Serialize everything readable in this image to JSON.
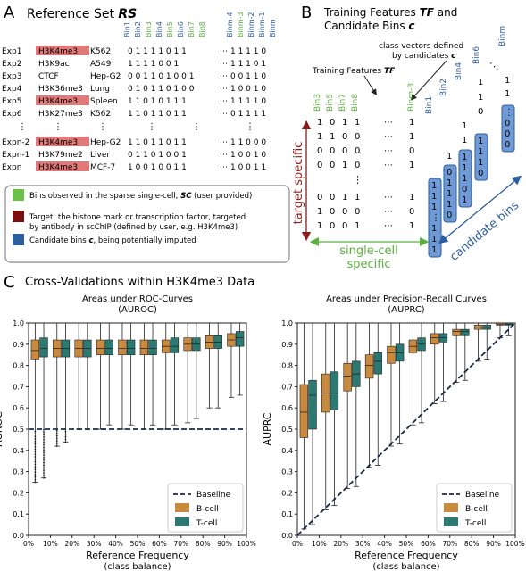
{
  "panelA": {
    "letter": "A",
    "title": "Reference Set ",
    "title_em": "RS",
    "bin_headers": [
      "Bin1",
      "Bin2",
      "Bin3",
      "Bin4",
      "Bin5",
      "Bin6",
      "Bin7",
      "Bin8",
      "Binm-4",
      "Binm-3",
      "Binm-2",
      "Binm-1",
      "Binm"
    ],
    "bin_header_colors": [
      "blue",
      "blue",
      "green",
      "blue",
      "green",
      "blue",
      "green",
      "green",
      "blue",
      "green",
      "blue",
      "blue",
      "blue"
    ],
    "rows": [
      {
        "exp": "Exp1",
        "mark": "H3K4me3",
        "cell": "K562",
        "bits": "0 1 1 1 1 0 1 1",
        "tail": "1 1 1 1 0",
        "hl": true
      },
      {
        "exp": "Exp2",
        "mark": "H3K9ac",
        "cell": "A549",
        "bits": "1 1 1 1 0 0 1",
        "tail": "1 1 1 0 1",
        "hl": false
      },
      {
        "exp": "Exp3",
        "mark": "CTCF",
        "cell": "Hep-G2",
        "bits": "0 0 1 1 0 1 0 0 1",
        "tail": "0 0 1 1 0",
        "hl": false
      },
      {
        "exp": "Exp4",
        "mark": "H3K36me3",
        "cell": "Lung",
        "bits": "0 1 0 1 1 0 1 0 0",
        "tail": "1 0 0 1 0",
        "hl": false
      },
      {
        "exp": "Exp5",
        "mark": "H3K4me3",
        "cell": "Spleen",
        "bits": "1 1 0 1 0 1 1 1",
        "tail": "1 1 1 1 0",
        "hl": true
      },
      {
        "exp": "Exp6",
        "mark": "H3K27me3",
        "cell": "K562",
        "bits": "1 1 0 1 1 0 1 1",
        "tail": "0 1 1 1 1",
        "hl": false
      },
      {
        "exp": "Expn-2",
        "mark": "H3K4me3",
        "cell": "Hep-G2",
        "bits": "1 1 0 1 1 0 1 1",
        "tail": "1 1 0 0 0",
        "hl": true
      },
      {
        "exp": "Expn-1",
        "mark": "H3K79me2",
        "cell": "Liver",
        "bits": "0 1 1 0 1 0 0 1",
        "tail": "1 0 0 1 0",
        "hl": false
      },
      {
        "exp": "Expn",
        "mark": "H3K4me3",
        "cell": "MCF-7",
        "bits": "1 0 0 1 0 0 1 1",
        "tail": "1 0 0 1 1",
        "hl": true
      }
    ],
    "legend": [
      {
        "color": "#6cc14a",
        "text1": "Bins observed in the sparse single-cell, ",
        "em": "SC",
        "text2": " (user provided)"
      },
      {
        "color": "#7a1010",
        "text1": "Target: the histone mark or transcription factor, targeted",
        "em": "",
        "text2": "by antibody in scChIP (defined by user, e.g. H3K4me3)"
      },
      {
        "color": "#2d5e9e",
        "text1": "Candidate bins ",
        "em": "c",
        "text2": ", being potentially imputed"
      }
    ]
  },
  "panelB": {
    "letter": "B",
    "title1": "Training Features ",
    "title1_em": "TF",
    "title1_end": " and",
    "title2": "Candidate Bins ",
    "title2_em": "c",
    "annot1": "class vectors defined",
    "annot2": "by candidates ",
    "annot2_em": "c",
    "tf_label": "Training Features ",
    "tf_label_em": "TF",
    "target_specific": "target specific",
    "single_cell_1": "single-cell",
    "single_cell_2": "specific",
    "candidate_bins": "candidate bins",
    "green_headers": [
      "Bin3",
      "Bin5",
      "Bin7",
      "Bin8",
      "Binm-3"
    ],
    "blue_headers": [
      "Bin1",
      "Bin2",
      "Bin4",
      "Bin6",
      "Binm"
    ]
  },
  "panelC": {
    "letter": "C",
    "title": "Cross-Validations within H3K4me3 Data",
    "colors": {
      "bcell": "#c98a3e",
      "tcell": "#2a7a72"
    },
    "legend": [
      "Baseline",
      "B-cell",
      "T-cell"
    ]
  },
  "chart_data": [
    {
      "type": "box",
      "title": "Areas under ROC-Curves",
      "subtitle": "(AUROC)",
      "xlabel": "Reference Frequency",
      "xlabel2": "(class balance)",
      "ylabel": "AUROC",
      "ylim": [
        0.0,
        1.0
      ],
      "yticks": [
        "0.0",
        "0.1",
        "0.2",
        "0.3",
        "0.4",
        "0.5",
        "0.6",
        "0.7",
        "0.8",
        "0.9",
        "1.0"
      ],
      "categories": [
        "0%",
        "10%",
        "20%",
        "30%",
        "40%",
        "50%",
        "60%",
        "70%",
        "80%",
        "90%",
        "100%"
      ],
      "baseline": 0.5,
      "series": [
        {
          "name": "B-cell",
          "boxes": [
            {
              "x": 0.05,
              "wlo": 0.25,
              "q1": 0.83,
              "med": 0.87,
              "q3": 0.92,
              "whi": 1.0
            },
            {
              "x": 0.15,
              "wlo": 0.42,
              "q1": 0.84,
              "med": 0.88,
              "q3": 0.92,
              "whi": 1.0
            },
            {
              "x": 0.25,
              "wlo": 0.5,
              "q1": 0.84,
              "med": 0.88,
              "q3": 0.92,
              "whi": 1.0
            },
            {
              "x": 0.35,
              "wlo": 0.5,
              "q1": 0.85,
              "med": 0.88,
              "q3": 0.92,
              "whi": 1.0
            },
            {
              "x": 0.45,
              "wlo": 0.5,
              "q1": 0.85,
              "med": 0.88,
              "q3": 0.92,
              "whi": 1.0
            },
            {
              "x": 0.55,
              "wlo": 0.5,
              "q1": 0.85,
              "med": 0.88,
              "q3": 0.92,
              "whi": 1.0
            },
            {
              "x": 0.65,
              "wlo": 0.5,
              "q1": 0.86,
              "med": 0.89,
              "q3": 0.92,
              "whi": 1.0
            },
            {
              "x": 0.75,
              "wlo": 0.53,
              "q1": 0.87,
              "med": 0.9,
              "q3": 0.93,
              "whi": 1.0
            },
            {
              "x": 0.85,
              "wlo": 0.6,
              "q1": 0.88,
              "med": 0.91,
              "q3": 0.94,
              "whi": 1.0
            },
            {
              "x": 0.95,
              "wlo": 0.65,
              "q1": 0.89,
              "med": 0.92,
              "q3": 0.95,
              "whi": 1.0
            }
          ]
        },
        {
          "name": "T-cell",
          "boxes": [
            {
              "x": 0.05,
              "wlo": 0.27,
              "q1": 0.84,
              "med": 0.88,
              "q3": 0.93,
              "whi": 1.0
            },
            {
              "x": 0.15,
              "wlo": 0.44,
              "q1": 0.84,
              "med": 0.88,
              "q3": 0.92,
              "whi": 1.0
            },
            {
              "x": 0.25,
              "wlo": 0.5,
              "q1": 0.84,
              "med": 0.88,
              "q3": 0.92,
              "whi": 1.0
            },
            {
              "x": 0.35,
              "wlo": 0.52,
              "q1": 0.85,
              "med": 0.88,
              "q3": 0.92,
              "whi": 1.0
            },
            {
              "x": 0.45,
              "wlo": 0.52,
              "q1": 0.85,
              "med": 0.88,
              "q3": 0.92,
              "whi": 1.0
            },
            {
              "x": 0.55,
              "wlo": 0.52,
              "q1": 0.85,
              "med": 0.88,
              "q3": 0.92,
              "whi": 1.0
            },
            {
              "x": 0.65,
              "wlo": 0.52,
              "q1": 0.86,
              "med": 0.89,
              "q3": 0.93,
              "whi": 1.0
            },
            {
              "x": 0.75,
              "wlo": 0.55,
              "q1": 0.87,
              "med": 0.9,
              "q3": 0.93,
              "whi": 1.0
            },
            {
              "x": 0.85,
              "wlo": 0.6,
              "q1": 0.88,
              "med": 0.91,
              "q3": 0.94,
              "whi": 1.0
            },
            {
              "x": 0.95,
              "wlo": 0.66,
              "q1": 0.89,
              "med": 0.93,
              "q3": 0.96,
              "whi": 1.0
            }
          ]
        }
      ]
    },
    {
      "type": "box",
      "title": "Areas under Precision-Recall Curves",
      "subtitle": "(AUPRC)",
      "xlabel": "Reference Frequency",
      "xlabel2": "(class balance)",
      "ylabel": "AUPRC",
      "ylim": [
        0.0,
        1.0
      ],
      "yticks": [
        "0.0",
        "0.1",
        "0.2",
        "0.3",
        "0.4",
        "0.5",
        "0.6",
        "0.7",
        "0.8",
        "0.9",
        "1.0"
      ],
      "categories": [
        "0%",
        "10%",
        "20%",
        "30%",
        "40%",
        "50%",
        "60%",
        "70%",
        "80%",
        "90%",
        "100%"
      ],
      "baseline": "diagonal",
      "series": [
        {
          "name": "B-cell",
          "boxes": [
            {
              "x": 0.05,
              "wlo": 0.03,
              "q1": 0.46,
              "med": 0.58,
              "q3": 0.71,
              "whi": 1.0
            },
            {
              "x": 0.15,
              "wlo": 0.12,
              "q1": 0.58,
              "med": 0.67,
              "q3": 0.76,
              "whi": 1.0
            },
            {
              "x": 0.25,
              "wlo": 0.22,
              "q1": 0.68,
              "med": 0.75,
              "q3": 0.81,
              "whi": 1.0
            },
            {
              "x": 0.35,
              "wlo": 0.32,
              "q1": 0.74,
              "med": 0.8,
              "q3": 0.85,
              "whi": 1.0
            },
            {
              "x": 0.45,
              "wlo": 0.42,
              "q1": 0.81,
              "med": 0.86,
              "q3": 0.89,
              "whi": 1.0
            },
            {
              "x": 0.55,
              "wlo": 0.52,
              "q1": 0.86,
              "med": 0.89,
              "q3": 0.92,
              "whi": 1.0
            },
            {
              "x": 0.65,
              "wlo": 0.62,
              "q1": 0.9,
              "med": 0.93,
              "q3": 0.95,
              "whi": 1.0
            },
            {
              "x": 0.75,
              "wlo": 0.72,
              "q1": 0.94,
              "med": 0.96,
              "q3": 0.97,
              "whi": 1.0
            },
            {
              "x": 0.85,
              "wlo": 0.82,
              "q1": 0.97,
              "med": 0.98,
              "q3": 0.99,
              "whi": 1.0
            },
            {
              "x": 0.95,
              "wlo": 0.93,
              "q1": 0.99,
              "med": 0.995,
              "q3": 1.0,
              "whi": 1.0
            }
          ]
        },
        {
          "name": "T-cell",
          "boxes": [
            {
              "x": 0.05,
              "wlo": 0.05,
              "q1": 0.5,
              "med": 0.66,
              "q3": 0.73,
              "whi": 1.0
            },
            {
              "x": 0.15,
              "wlo": 0.14,
              "q1": 0.59,
              "med": 0.67,
              "q3": 0.77,
              "whi": 1.0
            },
            {
              "x": 0.25,
              "wlo": 0.23,
              "q1": 0.7,
              "med": 0.76,
              "q3": 0.82,
              "whi": 1.0
            },
            {
              "x": 0.35,
              "wlo": 0.33,
              "q1": 0.76,
              "med": 0.82,
              "q3": 0.86,
              "whi": 1.0
            },
            {
              "x": 0.45,
              "wlo": 0.43,
              "q1": 0.82,
              "med": 0.86,
              "q3": 0.9,
              "whi": 1.0
            },
            {
              "x": 0.55,
              "wlo": 0.53,
              "q1": 0.87,
              "med": 0.9,
              "q3": 0.93,
              "whi": 1.0
            },
            {
              "x": 0.65,
              "wlo": 0.63,
              "q1": 0.91,
              "med": 0.93,
              "q3": 0.95,
              "whi": 1.0
            },
            {
              "x": 0.75,
              "wlo": 0.73,
              "q1": 0.94,
              "med": 0.96,
              "q3": 0.97,
              "whi": 1.0
            },
            {
              "x": 0.85,
              "wlo": 0.83,
              "q1": 0.97,
              "med": 0.98,
              "q3": 0.99,
              "whi": 1.0
            },
            {
              "x": 0.95,
              "wlo": 0.94,
              "q1": 0.99,
              "med": 0.995,
              "q3": 1.0,
              "whi": 1.0
            }
          ]
        }
      ]
    }
  ]
}
